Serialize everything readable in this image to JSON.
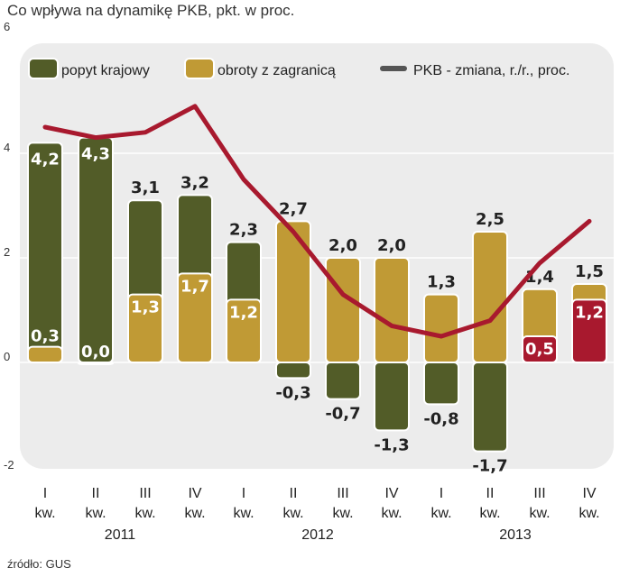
{
  "chart_data": {
    "type": "bar",
    "title": "Co wpływa na dynamikę PKB, pkt. w proc.",
    "source": "źródło: GUS",
    "ylim": [
      -2,
      6
    ],
    "yticks": [
      "-2",
      "0",
      "2",
      "4",
      "6"
    ],
    "grid": true,
    "legend_placement": "top",
    "quarters": [
      "I",
      "II",
      "III",
      "IV",
      "I",
      "II",
      "III",
      "IV",
      "I",
      "II",
      "III",
      "IV"
    ],
    "quarter_suffix": "kw.",
    "years": [
      "2011",
      "2012",
      "2013"
    ],
    "series": [
      {
        "name": "popyt krajowy",
        "color": "#525c28",
        "values": [
          4.2,
          4.3,
          3.1,
          3.2,
          2.3,
          -0.3,
          -0.7,
          -1.3,
          -0.8,
          -1.7,
          0.5,
          1.2
        ],
        "highlight_color": "#a8192e",
        "highlighted_from_index": 10
      },
      {
        "name": "obroty z zagranicą",
        "color": "#c09a35",
        "values": [
          0.3,
          0.0,
          1.3,
          1.7,
          1.2,
          2.7,
          2.0,
          2.0,
          1.3,
          2.5,
          1.4,
          1.5
        ]
      },
      {
        "name": "PKB - zmiana, r./r., proc.",
        "type": "line",
        "color": "#a8192e",
        "values": [
          4.5,
          4.3,
          4.4,
          4.9,
          3.5,
          2.5,
          1.3,
          0.7,
          0.5,
          0.8,
          1.9,
          2.7
        ]
      }
    ],
    "labels_popyt": [
      "4,2",
      "4,3",
      "3,1",
      "3,2",
      "2,3",
      "-0,3",
      "-0,7",
      "-1,3",
      "-0,8",
      "-1,7",
      "0,5",
      "1,2"
    ],
    "labels_obroty": [
      "0,3",
      "0,0",
      "1,3",
      "1,7",
      "1,2",
      "2,7",
      "2,0",
      "2,0",
      "1,3",
      "2,5",
      "1,4",
      "1,5"
    ]
  }
}
